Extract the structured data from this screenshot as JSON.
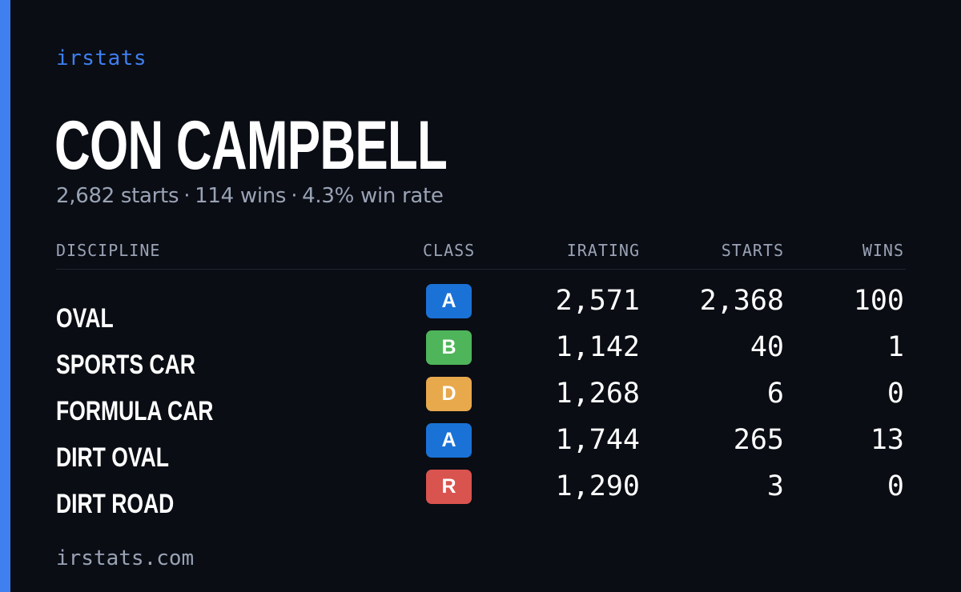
{
  "brand": {
    "name": "irstats",
    "accent_color": "#3f7ff0"
  },
  "driver": {
    "name": "CON CAMPBELL",
    "starts_text": "2,682 starts",
    "wins_text": "114 wins",
    "win_rate_text": "4.3% win rate",
    "separator": "·"
  },
  "table": {
    "headers": {
      "discipline": "DISCIPLINE",
      "class": "CLASS",
      "irating": "IRATING",
      "starts": "STARTS",
      "wins": "WINS"
    },
    "rows": [
      {
        "discipline": "OVAL",
        "class": "A",
        "class_color": "#1a72d6",
        "irating": "2,571",
        "starts": "2,368",
        "wins": "100"
      },
      {
        "discipline": "SPORTS CAR",
        "class": "B",
        "class_color": "#4fb55a",
        "irating": "1,142",
        "starts": "40",
        "wins": "1"
      },
      {
        "discipline": "FORMULA CAR",
        "class": "D",
        "class_color": "#e8a84c",
        "irating": "1,268",
        "starts": "6",
        "wins": "0"
      },
      {
        "discipline": "DIRT OVAL",
        "class": "A",
        "class_color": "#1a72d6",
        "irating": "1,744",
        "starts": "265",
        "wins": "13"
      },
      {
        "discipline": "DIRT ROAD",
        "class": "R",
        "class_color": "#d9534f",
        "irating": "1,290",
        "starts": "3",
        "wins": "0"
      }
    ]
  },
  "footer": {
    "url": "irstats.com"
  }
}
